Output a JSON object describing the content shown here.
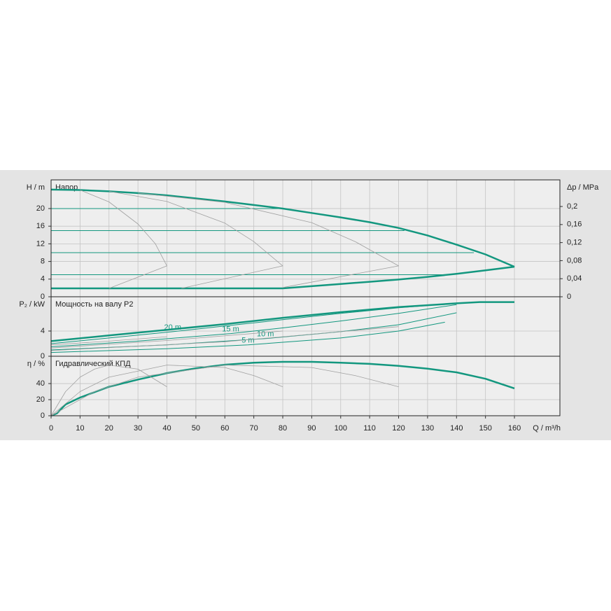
{
  "chart_data": [
    {
      "type": "line",
      "title": "Напор",
      "ylabel": "H / m",
      "ylim": [
        0,
        26.5
      ],
      "yticks": [
        0,
        4,
        8,
        12,
        16,
        20
      ],
      "y2label": "Δp / MPa",
      "y2lim": [
        0,
        0.259
      ],
      "y2ticks": [
        0,
        {
          "value": 0.04,
          "label": "0,04"
        },
        {
          "value": 0.08,
          "label": "0,08"
        },
        {
          "value": 0.12,
          "label": "0,12"
        },
        {
          "value": 0.16,
          "label": "0,16"
        },
        {
          "value": 0.2,
          "label": "0,2"
        }
      ],
      "grid": true,
      "series": [
        {
          "color": "#13977f",
          "linewidth": 2.5,
          "x": [
            0,
            10,
            20,
            30,
            40,
            50,
            60,
            70,
            80,
            90,
            100,
            110,
            120,
            130,
            140,
            150,
            160
          ],
          "values": [
            24.3,
            24.2,
            23.9,
            23.5,
            23.0,
            22.3,
            21.6,
            20.8,
            20.0,
            19.0,
            18.0,
            16.9,
            15.6,
            13.9,
            11.8,
            9.6,
            6.8
          ]
        },
        {
          "color": "#13977f",
          "linewidth": 2.5,
          "x": [
            0,
            20,
            40,
            60,
            80,
            90,
            100,
            110,
            120,
            130,
            140,
            150,
            160
          ],
          "values": [
            1.9,
            1.9,
            1.9,
            1.9,
            1.9,
            2.4,
            2.9,
            3.4,
            3.9,
            4.5,
            5.2,
            6.0,
            6.8
          ]
        },
        {
          "color": "#13977f",
          "linewidth": 1,
          "x": [
            0,
            80
          ],
          "values": [
            20,
            20
          ]
        },
        {
          "color": "#13977f",
          "linewidth": 1,
          "x": [
            0,
            122
          ],
          "values": [
            15,
            15
          ]
        },
        {
          "color": "#13977f",
          "linewidth": 1,
          "x": [
            0,
            146
          ],
          "values": [
            10,
            10
          ]
        },
        {
          "color": "#13977f",
          "linewidth": 1,
          "x": [
            0,
            137
          ],
          "values": [
            5,
            5
          ]
        },
        {
          "color": "#a0a0a0",
          "linewidth": 0.8,
          "x": [
            10,
            20,
            30,
            36,
            40,
            20
          ],
          "values": [
            24.2,
            21.5,
            16.5,
            12,
            7,
            1.9
          ]
        },
        {
          "color": "#a0a0a0",
          "linewidth": 0.8,
          "x": [
            20,
            40,
            60,
            70,
            80,
            45
          ],
          "values": [
            23.9,
            21.6,
            16.7,
            12.5,
            7,
            1.9
          ]
        },
        {
          "color": "#a0a0a0",
          "linewidth": 0.8,
          "x": [
            30,
            60,
            90,
            105,
            120,
            80
          ],
          "values": [
            23.5,
            21.4,
            16.8,
            12.5,
            7,
            2.1
          ]
        }
      ]
    },
    {
      "type": "line",
      "title": "Мощность на валу P2",
      "ylabel": "P₂ / kW",
      "ylim": [
        0,
        9.44
      ],
      "yticks": [
        0,
        4
      ],
      "grid": true,
      "series": [
        {
          "color": "#13977f",
          "linewidth": 2.5,
          "x": [
            0,
            20,
            40,
            60,
            80,
            100,
            120,
            140,
            148,
            160
          ],
          "values": [
            2.4,
            3.3,
            4.2,
            5.1,
            6.1,
            7.0,
            7.8,
            8.4,
            8.6,
            8.6
          ]
        },
        {
          "name": "20 m",
          "color": "#13977f",
          "linewidth": 1,
          "x": [
            0,
            20,
            42,
            60,
            80,
            100,
            120,
            140,
            147
          ],
          "values": [
            2.0,
            2.9,
            3.9,
            4.8,
            5.8,
            6.8,
            7.7,
            8.4,
            8.6
          ]
        },
        {
          "name": "15 m",
          "color": "#13977f",
          "linewidth": 1,
          "x": [
            0,
            30,
            62,
            80,
            100,
            120,
            140
          ],
          "values": [
            1.5,
            2.4,
            3.6,
            4.5,
            5.6,
            6.8,
            8.2
          ]
        },
        {
          "name": "10 m",
          "color": "#13977f",
          "linewidth": 1,
          "x": [
            0,
            40,
            74,
            100,
            120,
            140
          ],
          "values": [
            1.0,
            1.8,
            2.8,
            3.9,
            5.0,
            6.9
          ]
        },
        {
          "name": "5 m",
          "color": "#13977f",
          "linewidth": 1,
          "x": [
            0,
            40,
            68,
            100,
            120,
            136
          ],
          "values": [
            0.6,
            1.2,
            1.8,
            2.9,
            4.0,
            5.4
          ]
        },
        {
          "color": "#a0a0a0",
          "linewidth": 0.8,
          "x": [
            0,
            20,
            40
          ],
          "values": [
            1.8,
            2.4,
            3.1
          ]
        },
        {
          "color": "#a0a0a0",
          "linewidth": 0.8,
          "x": [
            0,
            40,
            80
          ],
          "values": [
            1.3,
            2.5,
            4.0
          ]
        },
        {
          "color": "#a0a0a0",
          "linewidth": 0.8,
          "x": [
            0,
            60,
            120
          ],
          "values": [
            0.9,
            2.3,
            4.7
          ]
        }
      ]
    },
    {
      "type": "line",
      "title": "Гидравлический КПД",
      "ylabel": "η / %",
      "ylim": [
        0,
        74
      ],
      "yticks": [
        0,
        20,
        40
      ],
      "grid": true,
      "xlabel": "Q / m³/h",
      "xlim": [
        0,
        175.7
      ],
      "xticks": [
        0,
        10,
        20,
        30,
        40,
        50,
        60,
        70,
        80,
        90,
        100,
        110,
        120,
        130,
        140,
        150,
        160
      ],
      "series": [
        {
          "color": "#13977f",
          "linewidth": 2.5,
          "x": [
            0,
            2,
            5,
            10,
            20,
            30,
            40,
            50,
            60,
            70,
            80,
            90,
            100,
            110,
            120,
            130,
            140,
            150,
            160
          ],
          "values": [
            0,
            3,
            14,
            22.6,
            36,
            45,
            53,
            59,
            63.5,
            66,
            67,
            67,
            66,
            64.5,
            62,
            58.5,
            54,
            46,
            34
          ]
        },
        {
          "color": "#a0a0a0",
          "linewidth": 0.8,
          "x": [
            0,
            5,
            10,
            15,
            20,
            30,
            40
          ],
          "values": [
            0,
            30,
            48,
            58,
            63,
            58,
            36
          ]
        },
        {
          "color": "#a0a0a0",
          "linewidth": 0.8,
          "x": [
            0,
            10,
            20,
            40,
            60,
            70,
            80
          ],
          "values": [
            0,
            30,
            48,
            63,
            60,
            50,
            36
          ]
        },
        {
          "color": "#a0a0a0",
          "linewidth": 0.8,
          "x": [
            0,
            15,
            30,
            60,
            90,
            105,
            120
          ],
          "values": [
            0,
            30,
            48,
            63,
            60,
            50,
            36
          ]
        }
      ]
    }
  ]
}
